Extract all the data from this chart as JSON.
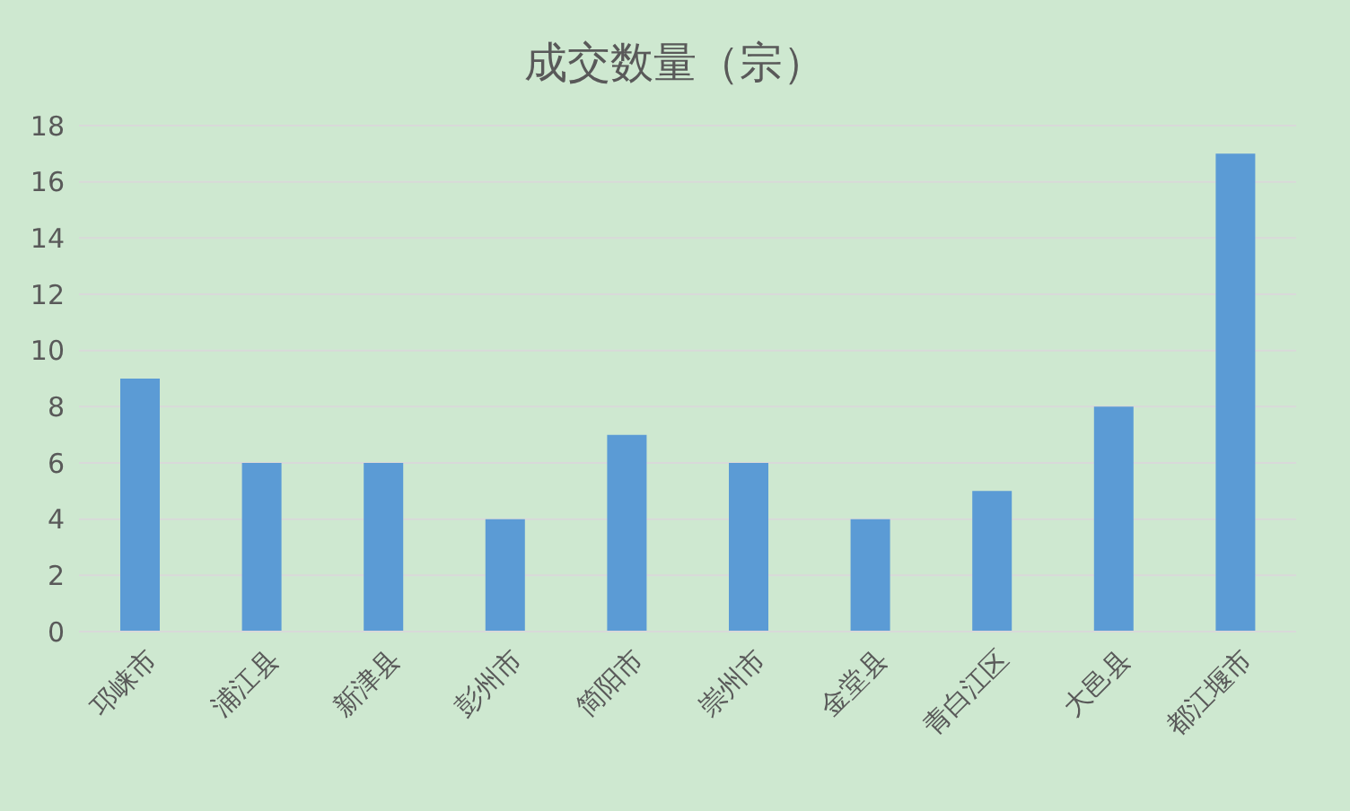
{
  "chart_data": {
    "type": "bar",
    "title": "成交数量（宗）",
    "categories": [
      "邛崃市",
      "浦江县",
      "新津县",
      "彭州市",
      "简阳市",
      "崇州市",
      "金堂县",
      "青白江区",
      "大邑县",
      "都江堰市"
    ],
    "values": [
      9,
      6,
      6,
      4,
      7,
      6,
      4,
      5,
      8,
      17
    ],
    "color": "#5b9bd5",
    "ylim": [
      0,
      18
    ],
    "yticks": [
      0,
      2,
      4,
      6,
      8,
      10,
      12,
      14,
      16,
      18
    ],
    "grid": "y"
  }
}
